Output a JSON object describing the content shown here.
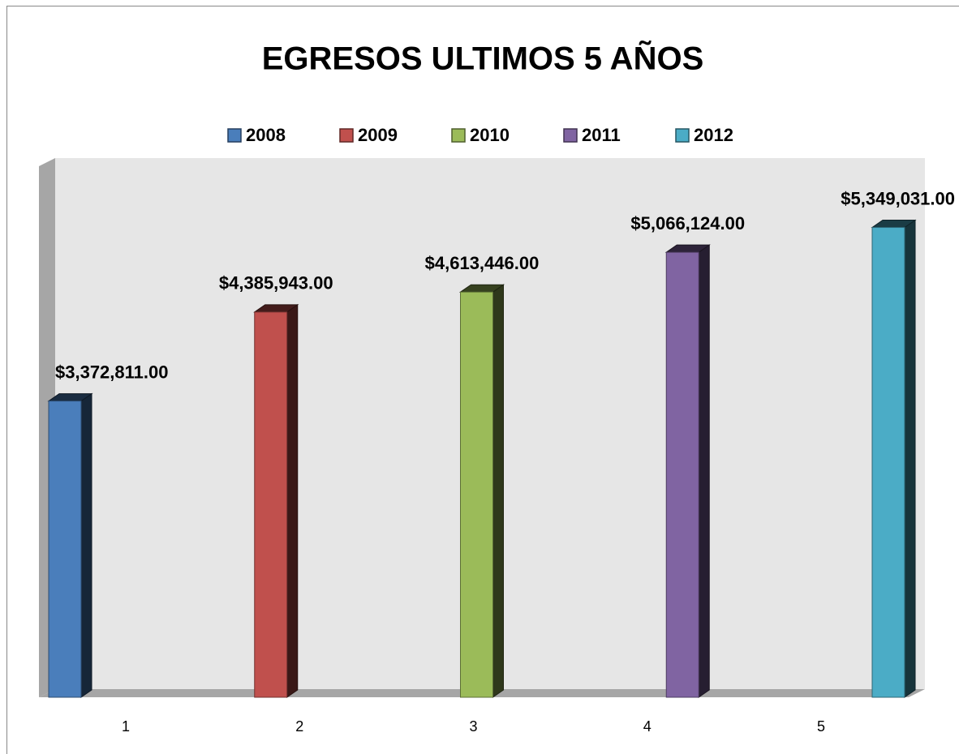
{
  "chart_data": {
    "type": "bar3d",
    "title": "EGRESOS ULTIMOS 5 AÑOS",
    "categories": [
      "1",
      "2",
      "3",
      "4",
      "5"
    ],
    "series": [
      {
        "name": "2008",
        "color": "#4a7ebb",
        "values": [
          3372811,
          null,
          null,
          null,
          null
        ],
        "value_labels": [
          "$3,372,811.00",
          null,
          null,
          null,
          null
        ]
      },
      {
        "name": "2009",
        "color": "#c0504d",
        "values": [
          null,
          4385943,
          null,
          null,
          null
        ],
        "value_labels": [
          null,
          "$4,385,943.00",
          null,
          null,
          null
        ]
      },
      {
        "name": "2010",
        "color": "#9bbb59",
        "values": [
          null,
          null,
          4613446,
          null,
          null
        ],
        "value_labels": [
          null,
          null,
          "$4,613,446.00",
          null,
          null
        ]
      },
      {
        "name": "2011",
        "color": "#8064a2",
        "values": [
          null,
          null,
          null,
          5066124,
          null
        ],
        "value_labels": [
          null,
          null,
          null,
          "$5,066,124.00",
          null
        ]
      },
      {
        "name": "2012",
        "color": "#4bacc6",
        "values": [
          null,
          null,
          null,
          null,
          5349031
        ],
        "value_labels": [
          null,
          null,
          null,
          null,
          "$5,349,031.00"
        ]
      }
    ],
    "ylim": [
      0,
      6000000
    ],
    "legend": "top"
  }
}
